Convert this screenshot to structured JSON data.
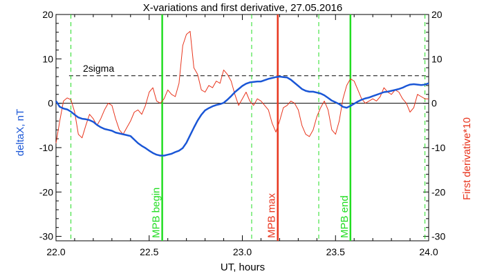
{
  "chart_data": {
    "type": "line",
    "title": "X-variations and first derivative, 27.05.2016",
    "xlabel": "UT, hours",
    "ylabel_left": "deltaX, nT",
    "ylabel_right": "First derivative*10",
    "xlim": [
      22.0,
      24.0
    ],
    "ylim": [
      -31,
      20
    ],
    "x_ticks": [
      "22.0",
      "22.5",
      "23.0",
      "23.5",
      "24.0"
    ],
    "y_ticks": [
      "20",
      "10",
      "0",
      "-10",
      "-20",
      "-30"
    ],
    "threshold": {
      "label": "2sigma",
      "value": 6.2
    },
    "colors": {
      "deltaX": "#1a56d6",
      "derivative": "#e8341c",
      "green": "#22dd22",
      "red": "#e8341c"
    },
    "series": [
      {
        "name": "deltaX, nT",
        "x": [
          22.0,
          22.02,
          22.04,
          22.06,
          22.08,
          22.1,
          22.12,
          22.14,
          22.16,
          22.18,
          22.2,
          22.22,
          22.24,
          22.26,
          22.28,
          22.3,
          22.32,
          22.34,
          22.36,
          22.38,
          22.4,
          22.42,
          22.44,
          22.46,
          22.48,
          22.5,
          22.52,
          22.54,
          22.56,
          22.58,
          22.6,
          22.62,
          22.64,
          22.66,
          22.68,
          22.7,
          22.72,
          22.74,
          22.76,
          22.78,
          22.8,
          22.82,
          22.84,
          22.86,
          22.88,
          22.9,
          22.92,
          22.94,
          22.96,
          22.98,
          23.0,
          23.02,
          23.04,
          23.06,
          23.08,
          23.1,
          23.12,
          23.14,
          23.16,
          23.18,
          23.2,
          23.22,
          23.24,
          23.26,
          23.28,
          23.3,
          23.32,
          23.34,
          23.36,
          23.38,
          23.4,
          23.42,
          23.44,
          23.46,
          23.48,
          23.5,
          23.52,
          23.54,
          23.56,
          23.58,
          23.6,
          23.62,
          23.64,
          23.66,
          23.68,
          23.7,
          23.72,
          23.74,
          23.76,
          23.78,
          23.8,
          23.82,
          23.84,
          23.86,
          23.88,
          23.9,
          23.92,
          23.94,
          23.96,
          23.98,
          24.0
        ],
        "y": [
          0.5,
          -0.8,
          -1.2,
          -1.4,
          -1.9,
          -2.6,
          -3.2,
          -3.5,
          -3.6,
          -3.8,
          -4.2,
          -4.9,
          -5.4,
          -5.8,
          -6.0,
          -6.2,
          -6.6,
          -6.8,
          -7.0,
          -7.2,
          -7.4,
          -8.2,
          -9.0,
          -9.6,
          -10.1,
          -10.7,
          -11.2,
          -11.6,
          -11.8,
          -11.8,
          -11.6,
          -11.4,
          -11.0,
          -10.7,
          -10.1,
          -8.9,
          -7.2,
          -5.5,
          -3.9,
          -2.6,
          -1.6,
          -1.1,
          -0.7,
          -0.4,
          -0.2,
          0.1,
          0.8,
          1.6,
          2.5,
          3.2,
          3.9,
          4.4,
          4.7,
          4.8,
          4.9,
          4.9,
          5.2,
          5.5,
          5.7,
          5.9,
          6.0,
          5.9,
          5.8,
          5.3,
          4.6,
          3.9,
          3.2,
          2.8,
          2.6,
          2.6,
          2.4,
          2.2,
          1.8,
          1.2,
          0.6,
          0.2,
          -0.2,
          -0.8,
          -1.0,
          -0.6,
          -0.1,
          0.4,
          0.8,
          1.1,
          1.3,
          1.6,
          1.9,
          2.2,
          2.5,
          2.6,
          2.8,
          3.0,
          3.2,
          3.5,
          3.9,
          4.2,
          4.3,
          4.2,
          4.1,
          4.2,
          4.5
        ]
      },
      {
        "name": "First derivative*10",
        "x": [
          22.0,
          22.02,
          22.04,
          22.06,
          22.08,
          22.1,
          22.12,
          22.14,
          22.16,
          22.18,
          22.2,
          22.22,
          22.24,
          22.26,
          22.28,
          22.3,
          22.32,
          22.34,
          22.36,
          22.38,
          22.4,
          22.42,
          22.44,
          22.46,
          22.48,
          22.5,
          22.52,
          22.54,
          22.56,
          22.58,
          22.6,
          22.62,
          22.64,
          22.66,
          22.68,
          22.7,
          22.72,
          22.74,
          22.76,
          22.78,
          22.8,
          22.82,
          22.84,
          22.86,
          22.88,
          22.9,
          22.92,
          22.94,
          22.96,
          22.98,
          23.0,
          23.02,
          23.04,
          23.06,
          23.08,
          23.1,
          23.12,
          23.14,
          23.16,
          23.18,
          23.2,
          23.22,
          23.24,
          23.26,
          23.28,
          23.3,
          23.32,
          23.34,
          23.36,
          23.38,
          23.4,
          23.42,
          23.44,
          23.46,
          23.48,
          23.5,
          23.52,
          23.54,
          23.56,
          23.58,
          23.6,
          23.62,
          23.64,
          23.66,
          23.68,
          23.7,
          23.72,
          23.74,
          23.76,
          23.78,
          23.8,
          23.82,
          23.84,
          23.86,
          23.88,
          23.9,
          23.92,
          23.94,
          23.96,
          23.98,
          24.0
        ],
        "y": [
          -9.0,
          -4.0,
          0.5,
          1.2,
          0.8,
          -2.0,
          -7.0,
          -7.8,
          -5.0,
          -2.5,
          -3.5,
          -5.0,
          -3.5,
          -1.5,
          0.0,
          -0.5,
          -3.5,
          -6.0,
          -7.0,
          -5.5,
          -4.0,
          -2.0,
          -1.5,
          -2.5,
          -0.5,
          2.5,
          3.5,
          0.5,
          0.0,
          1.0,
          3.0,
          2.0,
          1.5,
          4.5,
          13.0,
          15.5,
          16.2,
          8.0,
          6.5,
          3.0,
          2.5,
          4.0,
          3.5,
          5.0,
          4.5,
          7.5,
          6.5,
          5.0,
          2.0,
          -0.5,
          1.0,
          2.5,
          0.5,
          -0.5,
          1.0,
          0.5,
          -0.5,
          -1.5,
          -4.5,
          -6.5,
          -4.0,
          -1.0,
          -0.5,
          0.5,
          0.0,
          -1.5,
          -5.0,
          -7.0,
          -7.5,
          -6.0,
          -3.0,
          -1.0,
          0.5,
          -1.5,
          -6.0,
          -7.0,
          -4.0,
          1.0,
          4.0,
          5.5,
          5.0,
          3.0,
          1.0,
          0.0,
          0.5,
          1.0,
          0.5,
          1.5,
          3.5,
          2.5,
          2.0,
          3.0,
          2.5,
          1.0,
          0.0,
          -2.0,
          -1.0,
          2.0,
          1.5,
          1.0,
          1.0
        ]
      }
    ],
    "vertical_lines": [
      {
        "x": 22.08,
        "style": "dashed",
        "color": "green",
        "label": ""
      },
      {
        "x": 22.57,
        "style": "solid",
        "color": "green",
        "label": "MPB begin"
      },
      {
        "x": 23.05,
        "style": "dashed",
        "color": "green",
        "label": ""
      },
      {
        "x": 23.19,
        "style": "solid",
        "color": "red",
        "label": "MPB max"
      },
      {
        "x": 23.41,
        "style": "dashed",
        "color": "green",
        "label": ""
      },
      {
        "x": 23.58,
        "style": "solid",
        "color": "green",
        "label": "MPB end"
      },
      {
        "x": 23.98,
        "style": "dashed",
        "color": "green",
        "label": ""
      }
    ],
    "grid": false,
    "legend": "none"
  }
}
